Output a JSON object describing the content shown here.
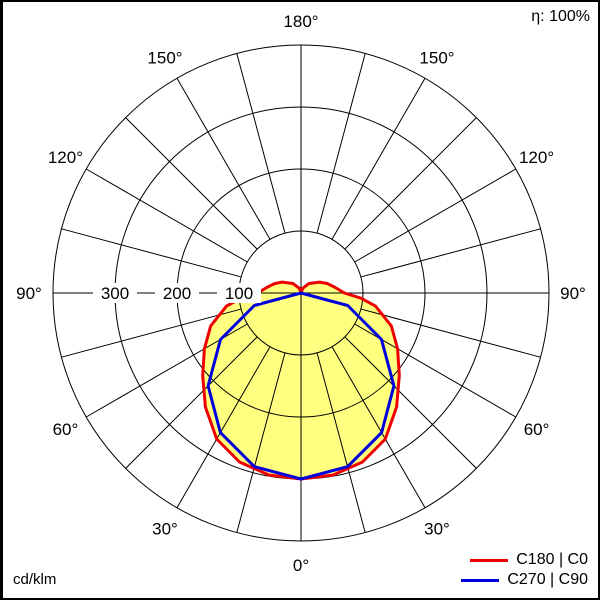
{
  "chart_data": {
    "type": "polar",
    "efficiency_label": "η: 100%",
    "unit_label": "cd/klm",
    "radial_ticks": [
      100,
      200,
      300
    ],
    "radial_max": 400,
    "angle_labels": [
      "180°",
      "150°",
      "120°",
      "90°",
      "60°",
      "30°",
      "0°"
    ],
    "fill_color": "#ffff80",
    "series": [
      {
        "name": "C180 | C0",
        "color": "#ee0000",
        "gamma": [
          0,
          10,
          20,
          30,
          40,
          50,
          60,
          70,
          80,
          85,
          90,
          100,
          110,
          120,
          140,
          160,
          180
        ],
        "values": [
          300,
          298,
          290,
          272,
          240,
          207,
          180,
          155,
          122,
          97,
          70,
          55,
          45,
          35,
          20,
          8,
          0
        ]
      },
      {
        "name": "C270 | C90",
        "color": "#0000dd",
        "gamma": [
          0,
          15,
          30,
          45,
          60,
          75,
          90
        ],
        "values": [
          300,
          290,
          260,
          212,
          150,
          78,
          0
        ]
      }
    ]
  }
}
